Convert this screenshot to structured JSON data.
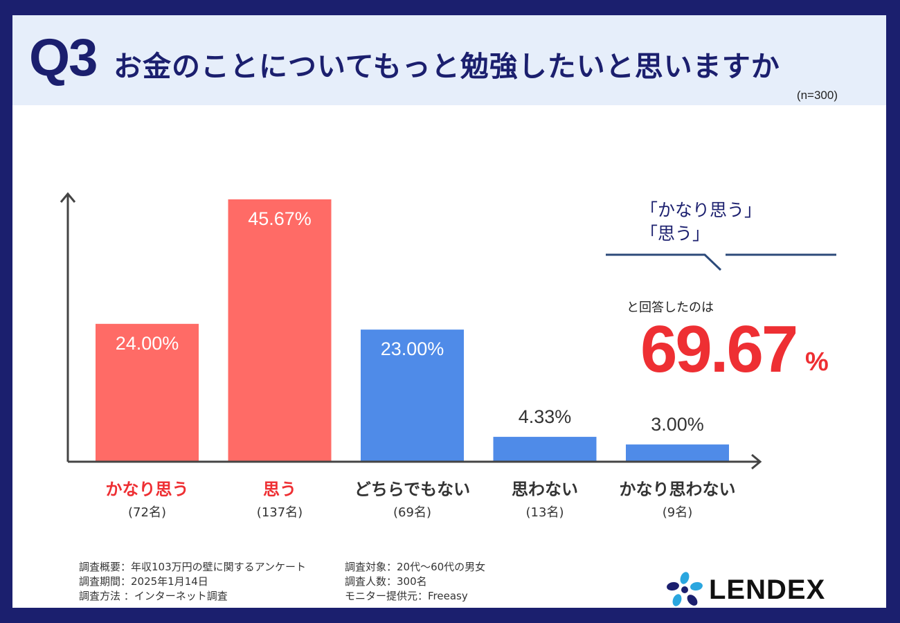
{
  "header": {
    "question_number": "Q3",
    "question_text": "お金のことについてもっと勉強したいと思いますか",
    "sample_size": "(n=300)"
  },
  "chart_data": {
    "type": "bar",
    "categories": [
      "かなり思う",
      "思う",
      "どちらでもない",
      "思わない",
      "かなり思わない"
    ],
    "counts": [
      "(72名)",
      "(137名)",
      "(69名)",
      "(13名)",
      "(9名)"
    ],
    "values": [
      24.0,
      45.67,
      23.0,
      4.33,
      3.0
    ],
    "value_labels": [
      "24.00%",
      "45.67%",
      "23.00%",
      "4.33%",
      "3.00%"
    ],
    "ylim": [
      0,
      45.67
    ],
    "colors": [
      "#ff6b66",
      "#ff6b66",
      "#4f8be8",
      "#4f8be8",
      "#4f8be8"
    ],
    "category_colors": [
      "#ee2f33",
      "#ee2f33",
      "#333333",
      "#333333",
      "#333333"
    ],
    "value_label_colors": [
      "#ffffff",
      "#ffffff",
      "#ffffff",
      "#333333",
      "#333333"
    ]
  },
  "callout": {
    "line1": "「かなり思う」",
    "line2": "「思う」",
    "answered": "と回答したのは",
    "value": "69.67",
    "unit": "%"
  },
  "footer": {
    "left": [
      "調査概要：年収103万円の壁に関するアンケート",
      "調査期間：2025年1月14日",
      "調査方法 ：インターネット調査"
    ],
    "right": [
      "調査対象：20代〜60代の男女",
      "調査人数：300名",
      "モニター提供元：Freeasy"
    ]
  },
  "logo": {
    "text": "LENDEX"
  },
  "colors": {
    "navy": "#1b1f6e",
    "red": "#ee2f33",
    "bar_red": "#ff6b66",
    "bar_blue": "#4f8be8"
  }
}
